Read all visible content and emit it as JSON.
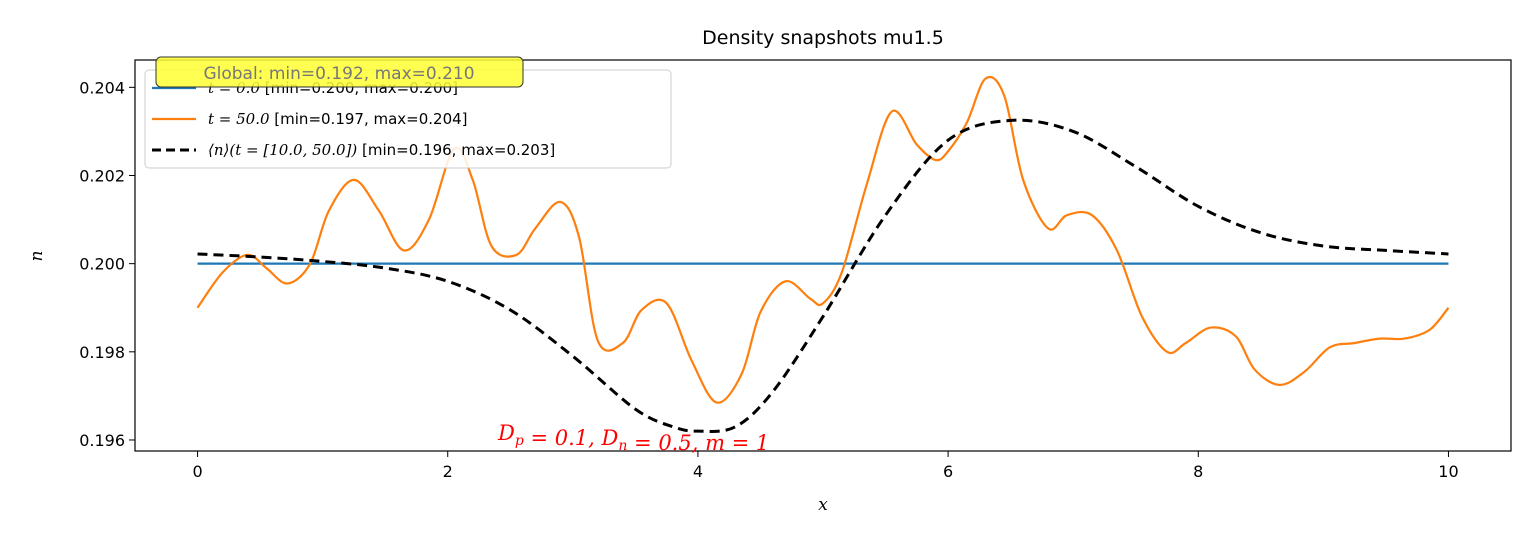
{
  "chart_data": {
    "type": "line",
    "title": "Density snapshots mu1.5",
    "xlabel": "x",
    "ylabel": "n",
    "xlim": [
      -0.5,
      10.5
    ],
    "ylim": [
      0.19575,
      0.20462
    ],
    "xticks": [
      0,
      2,
      4,
      6,
      8,
      10
    ],
    "xtick_labels": [
      "0",
      "2",
      "4",
      "6",
      "8",
      "10"
    ],
    "yticks": [
      0.196,
      0.198,
      0.2,
      0.202,
      0.204
    ],
    "ytick_labels": [
      "0.196",
      "0.198",
      "0.200",
      "0.202",
      "0.204"
    ],
    "grid": false,
    "legend_position": "upper-left",
    "series": [
      {
        "name": "t = 0.0 [min=0.200, max=0.200]",
        "color": "#1f77b4",
        "style": "solid",
        "x": [
          0,
          10
        ],
        "y": [
          0.2,
          0.2
        ]
      },
      {
        "name": "t = 50.0 [min=0.197, max=0.204]",
        "color": "#ff7f0e",
        "style": "solid",
        "x": [
          0,
          0.2,
          0.4,
          0.55,
          0.72,
          0.9,
          1.05,
          1.25,
          1.45,
          1.65,
          1.85,
          2.05,
          2.2,
          2.35,
          2.55,
          2.7,
          2.9,
          3.05,
          3.2,
          3.4,
          3.55,
          3.75,
          3.95,
          4.15,
          4.35,
          4.5,
          4.7,
          4.9,
          5.0,
          5.15,
          5.35,
          5.55,
          5.75,
          5.9,
          6.0,
          6.15,
          6.3,
          6.45,
          6.6,
          6.8,
          6.95,
          7.15,
          7.35,
          7.55,
          7.75,
          7.9,
          8.1,
          8.3,
          8.45,
          8.65,
          8.85,
          9.05,
          9.25,
          9.45,
          9.65,
          9.85,
          10.0
        ],
        "y": [
          0.199,
          0.1998,
          0.2002,
          0.1999,
          0.19955,
          0.2,
          0.2012,
          0.2019,
          0.2012,
          0.2003,
          0.201,
          0.2026,
          0.2019,
          0.2004,
          0.2002,
          0.2008,
          0.2014,
          0.2006,
          0.19825,
          0.1982,
          0.19895,
          0.1991,
          0.1978,
          0.19685,
          0.1975,
          0.1989,
          0.1996,
          0.1992,
          0.1991,
          0.1998,
          0.2018,
          0.20345,
          0.2027,
          0.20235,
          0.20255,
          0.2032,
          0.2042,
          0.2038,
          0.2019,
          0.2008,
          0.2011,
          0.2011,
          0.2003,
          0.1988,
          0.198,
          0.1982,
          0.19855,
          0.19835,
          0.1976,
          0.19725,
          0.19755,
          0.1981,
          0.1982,
          0.1983,
          0.1983,
          0.1985,
          0.199
        ]
      },
      {
        "name": "⟨n⟩(t = [10.0, 50.0]) [min=0.196, max=0.203]",
        "color": "#000000",
        "style": "dashed",
        "x": [
          0,
          0.5,
          1.0,
          1.5,
          2.0,
          2.5,
          3.0,
          3.5,
          3.8,
          4.0,
          4.3,
          4.6,
          5.0,
          5.5,
          6.0,
          6.5,
          7.0,
          7.5,
          8.0,
          8.5,
          9.0,
          9.5,
          10.0
        ],
        "y": [
          0.20022,
          0.20015,
          0.20005,
          0.1999,
          0.1996,
          0.19895,
          0.1979,
          0.1967,
          0.1963,
          0.1962,
          0.1963,
          0.1971,
          0.1988,
          0.2011,
          0.2028,
          0.20325,
          0.203,
          0.2022,
          0.2013,
          0.2007,
          0.2004,
          0.2003,
          0.20022
        ]
      }
    ],
    "legend_labels": {
      "series0_math": "t = 0.0",
      "series0_rest": " [min=0.200, max=0.200]",
      "series1_math": "t = 50.0",
      "series1_rest": " [min=0.197, max=0.204]",
      "series2_math": "⟨n⟩(t = [10.0, 50.0])",
      "series2_rest": " [min=0.196, max=0.203]"
    },
    "annotations": {
      "global_badge": "Global: min=0.192, max=0.210",
      "global_badge_color": "#ffff33",
      "params": "D_p = 0.1, D_n = 0.5, m = 1",
      "params_color": "#ff0000"
    }
  }
}
